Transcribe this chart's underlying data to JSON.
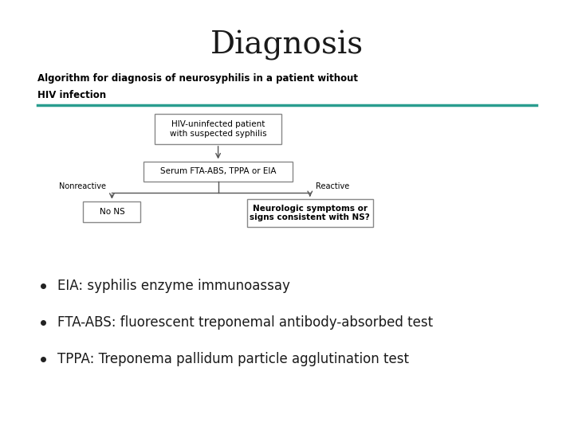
{
  "title": "Diagnosis",
  "title_fontsize": 28,
  "title_font": "serif",
  "bg_color": "#ffffff",
  "algo_title_line1": "Algorithm for diagnosis of neurosyphilis in a patient without",
  "algo_title_line2": "HIV infection",
  "algo_title_fontsize": 8.5,
  "teal_line_color": "#2a9d8f",
  "box1_text": "HIV-uninfected patient\nwith suspected syphilis",
  "box2_text": "Serum FTA-ABS, TPPA or EIA",
  "box3_text": "No NS",
  "box4_text": "Neurologic symptoms or\nsigns consistent with NS?",
  "label_nonreactive": "Nonreactive",
  "label_reactive": "Reactive",
  "box_edgecolor": "#888888",
  "box_facecolor": "#ffffff",
  "arrow_color": "#555555",
  "bullet_points": [
    "EIA: syphilis enzyme immunoassay",
    "FTA-ABS: fluorescent treponemal antibody-absorbed test",
    "TPPA: Treponema pallidum particle agglutination test"
  ],
  "bullet_fontsize": 12,
  "bullet_font": "sans-serif",
  "text_color": "#1a1a1a"
}
